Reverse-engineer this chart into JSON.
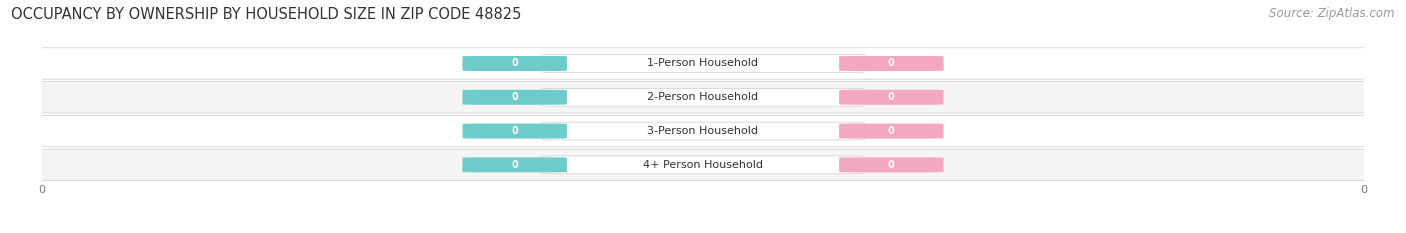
{
  "title": "OCCUPANCY BY OWNERSHIP BY HOUSEHOLD SIZE IN ZIP CODE 48825",
  "source": "Source: ZipAtlas.com",
  "categories": [
    "1-Person Household",
    "2-Person Household",
    "3-Person Household",
    "4+ Person Household"
  ],
  "owner_values": [
    0,
    0,
    0,
    0
  ],
  "renter_values": [
    0,
    0,
    0,
    0
  ],
  "owner_color": "#6DCBCA",
  "renter_color": "#F4A7C0",
  "bar_bg_color": "#F0F0F0",
  "bar_border_color": "#DDDDDD",
  "label_bg_color": "#FFFFFF",
  "title_fontsize": 10.5,
  "source_fontsize": 8.5,
  "label_fontsize": 8,
  "tick_fontsize": 8,
  "background_color": "#FFFFFF",
  "text_color": "#333333",
  "source_color": "#999999",
  "row_colors": [
    "#FFFFFF",
    "#F5F5F5",
    "#FFFFFF",
    "#F5F5F5"
  ]
}
